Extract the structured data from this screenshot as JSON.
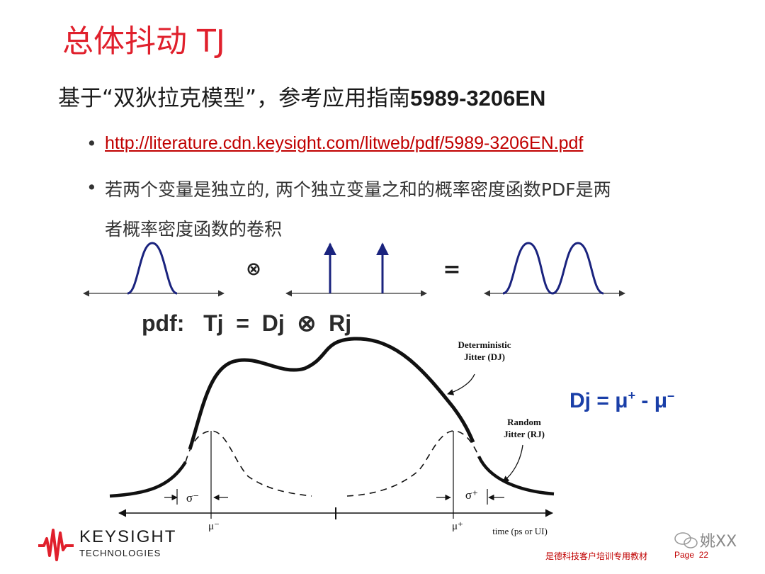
{
  "slide": {
    "title": "总体抖动 TJ",
    "subtitle_cn": "基于“双狄拉克模型”，参考应用指南",
    "subtitle_en": "5989-3206EN",
    "bullets": [
      {
        "text": "http://literature.cdn.keysight.com/litweb/pdf/5989-3206EN.pdf",
        "is_link": true
      },
      {
        "line1": "若两个变量是独立的, 两个独立变量之和的概率密度函数PDF是两",
        "line2": "者概率密度函数的卷积"
      }
    ],
    "bullet_symbol": "•"
  },
  "convolution": {
    "op_symbol": "⊗",
    "eq_symbol": "=",
    "pdf_equation": "pdf:   Tj  =  Dj  ⊗  Rj"
  },
  "jitter_diagram": {
    "dj_label_line1": "Deterministic",
    "dj_label_line2": "Jitter (DJ)",
    "rj_label_line1": "Random",
    "rj_label_line2": "Jitter (RJ)",
    "sigma_minus": "σ⁻",
    "sigma_plus": "σ⁺",
    "mu_minus": "μ⁻",
    "mu_plus": "μ⁺",
    "axis_label": "time (ps or UI)"
  },
  "dj_formula": {
    "lhs": "Dj = ",
    "mu": "μ",
    "plus": "+",
    "minus_op": " - ",
    "minus": "–"
  },
  "footer": {
    "logo_line1": "KEYSIGHT",
    "logo_line2": "TECHNOLOGIES",
    "course": "是德科技客户培训专用教材",
    "page_label": "Page",
    "page_number": "22",
    "watermark": "姚XX"
  },
  "colors": {
    "title": "#e0202c",
    "curve": "#1a237e",
    "dj_formula": "#1a3fa8",
    "footer": "#c00000",
    "logo_wave": "#e0202c"
  }
}
